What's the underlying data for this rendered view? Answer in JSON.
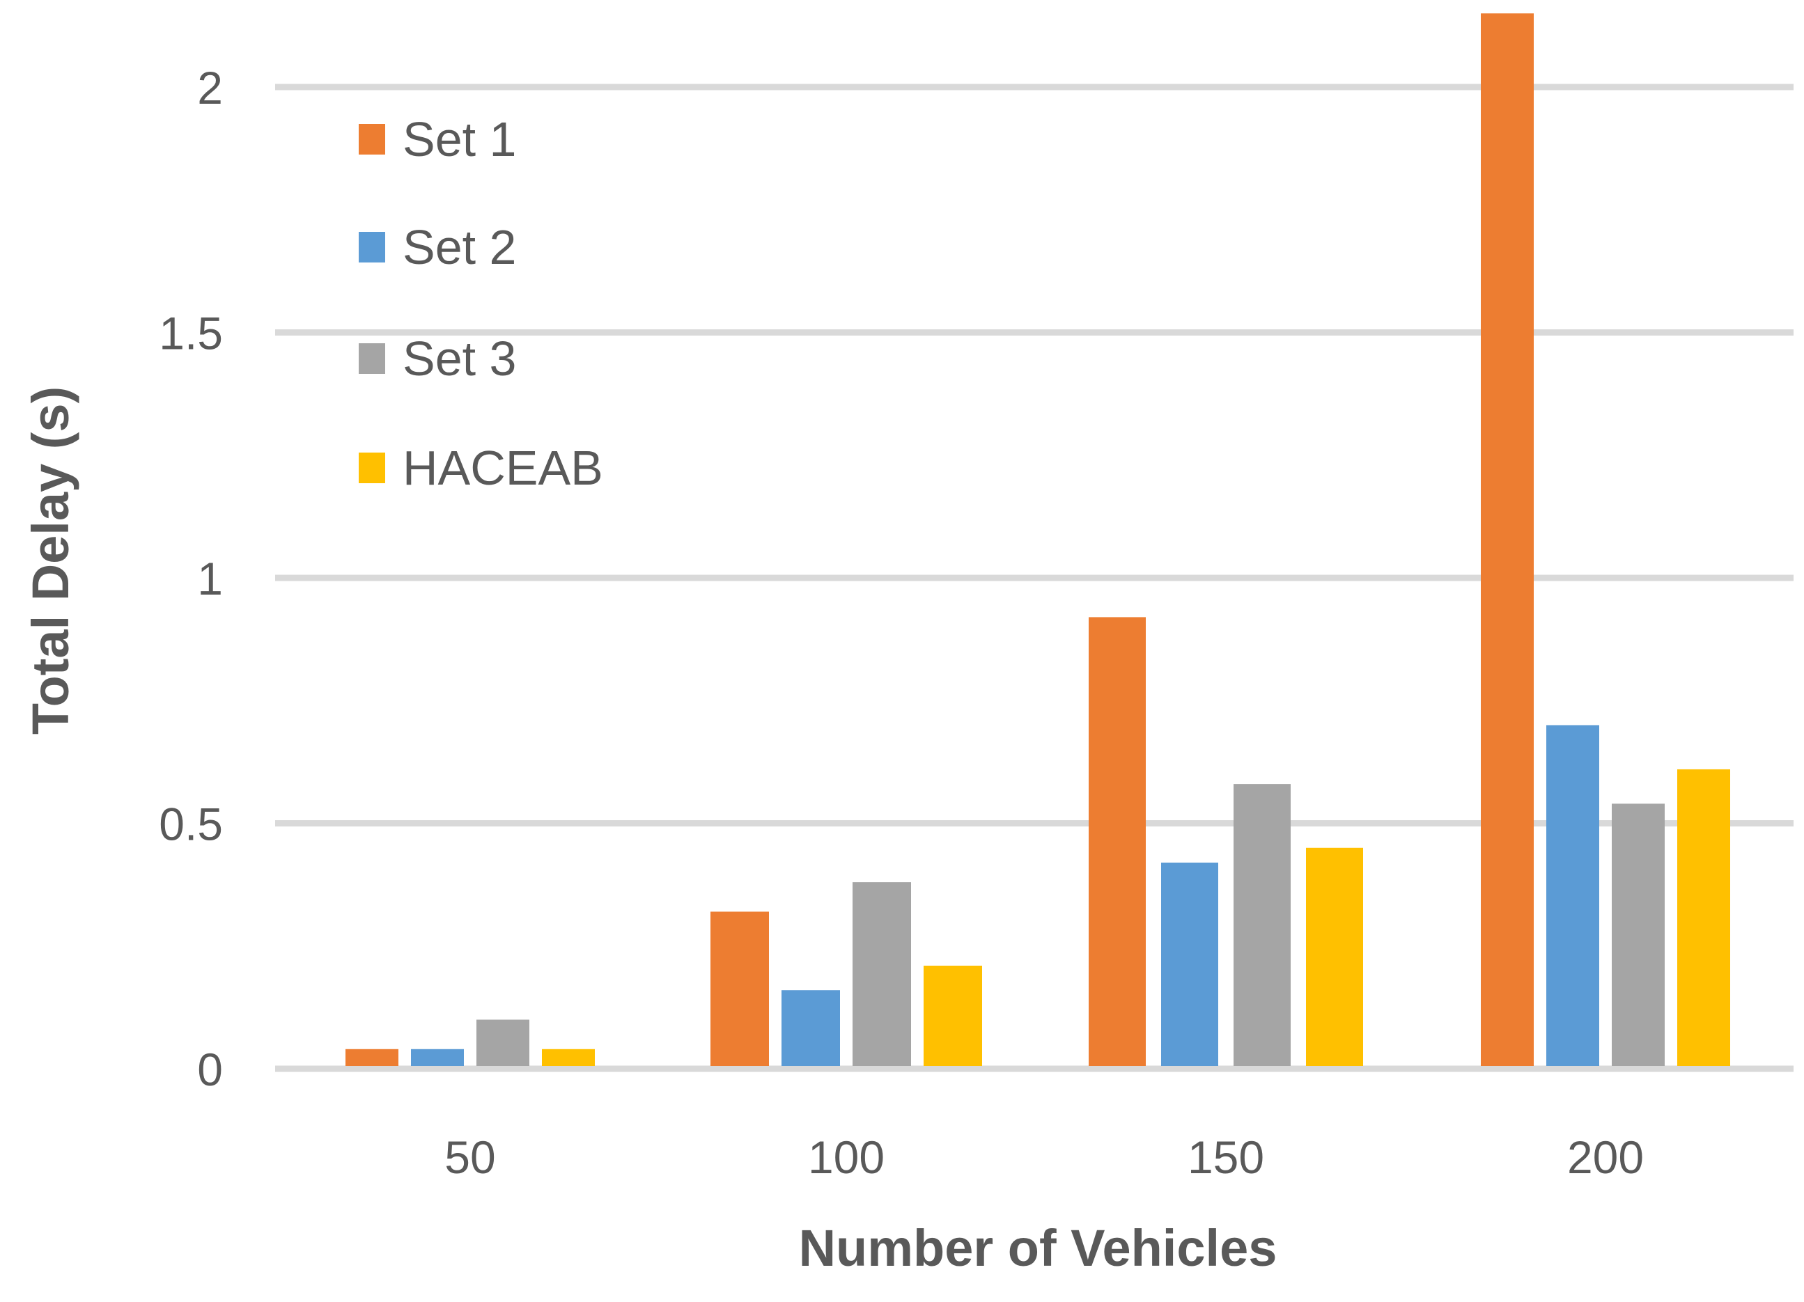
{
  "chart_data": {
    "type": "bar",
    "title": "",
    "xlabel": "Number of Vehicles",
    "ylabel": "Total Delay (s)",
    "categories": [
      "50",
      "100",
      "150",
      "200"
    ],
    "ylim": [
      0,
      2.15
    ],
    "yticks": [
      0,
      0.5,
      1,
      1.5,
      2
    ],
    "ytick_labels": [
      "0",
      "0.5",
      "1",
      "1.5",
      "2"
    ],
    "grid": true,
    "legend_position": "top-left",
    "series": [
      {
        "name": "Set 1",
        "color": "#ED7D31",
        "values": [
          0.04,
          0.32,
          0.92,
          2.15
        ]
      },
      {
        "name": "Set 2",
        "color": "#5B9BD5",
        "values": [
          0.04,
          0.16,
          0.42,
          0.7
        ]
      },
      {
        "name": "Set 3",
        "color": "#A5A5A5",
        "values": [
          0.1,
          0.38,
          0.58,
          0.54
        ]
      },
      {
        "name": "HACEAB",
        "color": "#FFC000",
        "values": [
          0.04,
          0.21,
          0.45,
          0.61
        ]
      }
    ]
  }
}
